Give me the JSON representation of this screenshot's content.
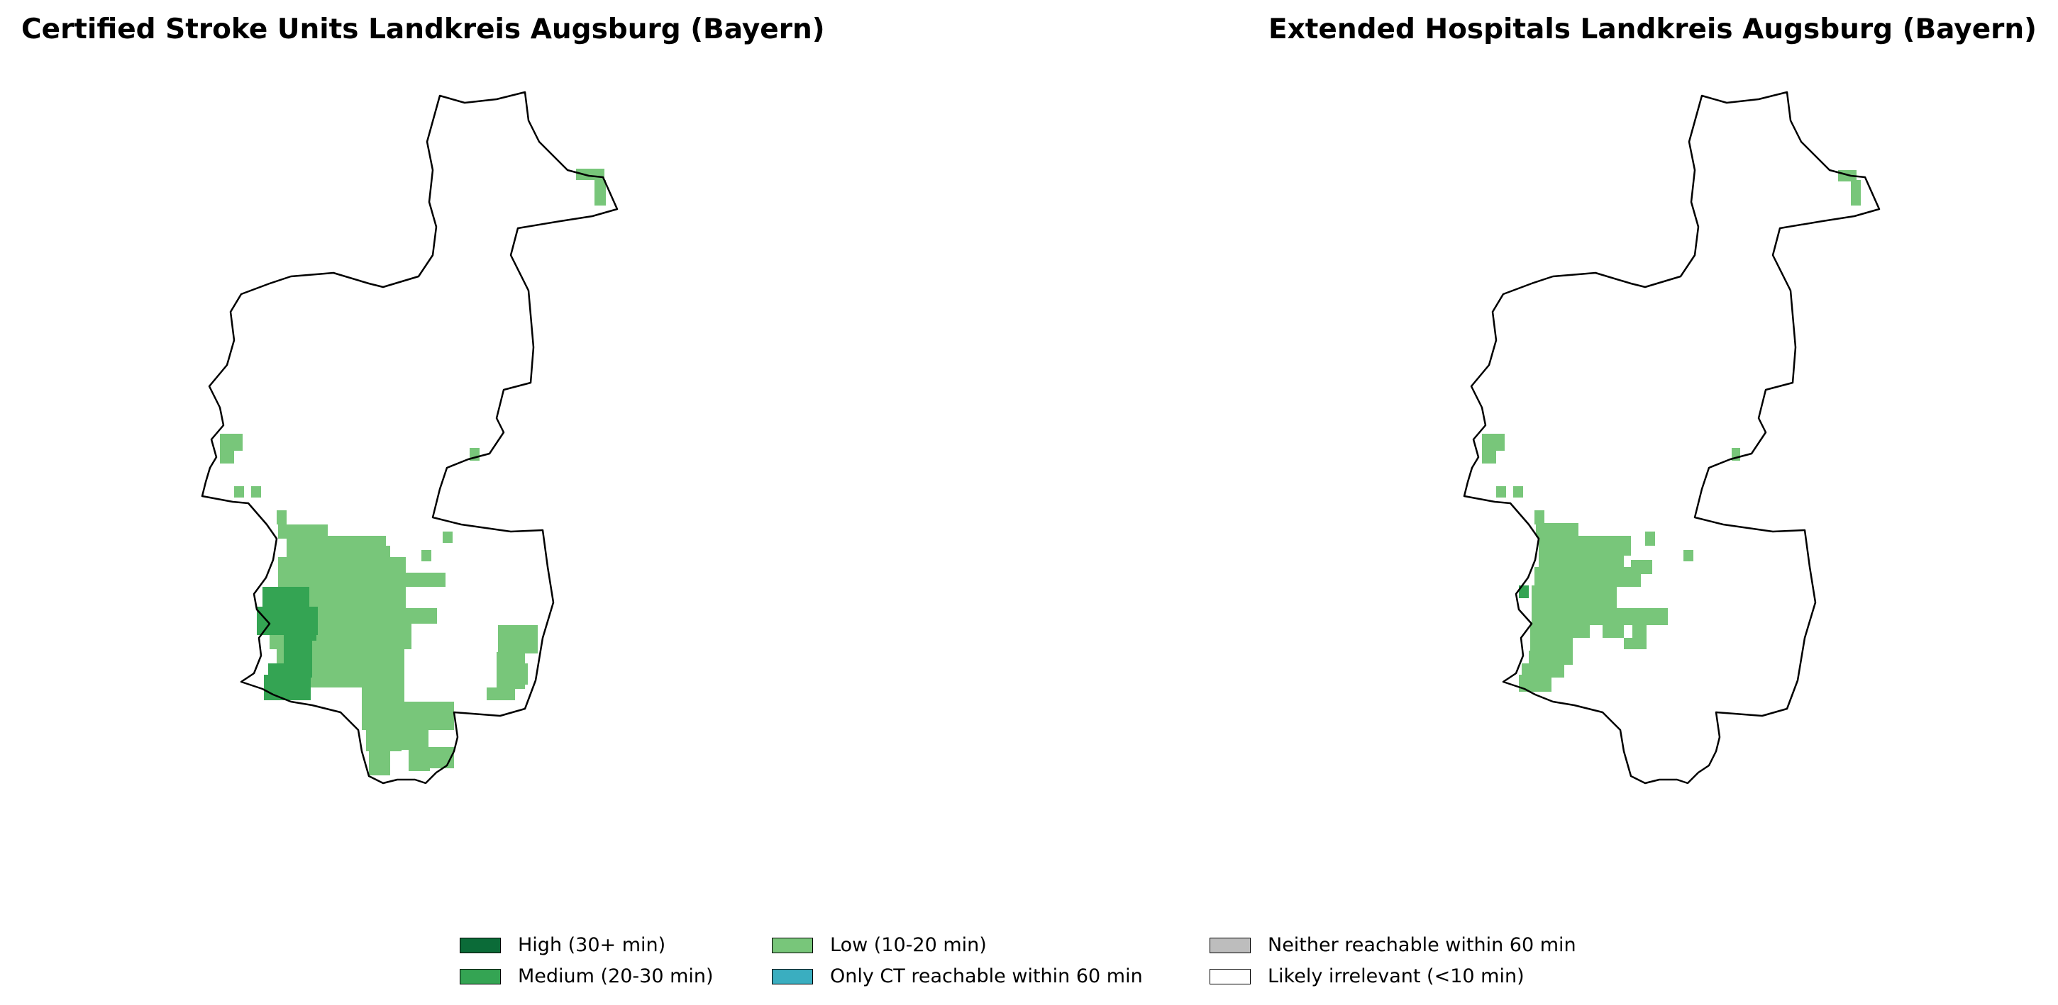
{
  "maps": [
    {
      "title": "Certified Stroke Units Landkreis Augsburg (Bayern)"
    },
    {
      "title": "Extended Hospitals Landkreis Augsburg (Bayern)"
    }
  ],
  "legend": [
    {
      "label": "High (30+ min)",
      "color": "#0b6b38"
    },
    {
      "label": "Medium (20-30 min)",
      "color": "#34a453"
    },
    {
      "label": "Low (10-20 min)",
      "color": "#78c67a"
    },
    {
      "label": "Only CT reachable within 60 min",
      "color": "#3aaec0"
    },
    {
      "label": "Neither reachable within 60 min",
      "color": "#bdbdbd"
    },
    {
      "label": "Likely irrelevant (<10 min)",
      "color": "#ffffff"
    }
  ]
}
